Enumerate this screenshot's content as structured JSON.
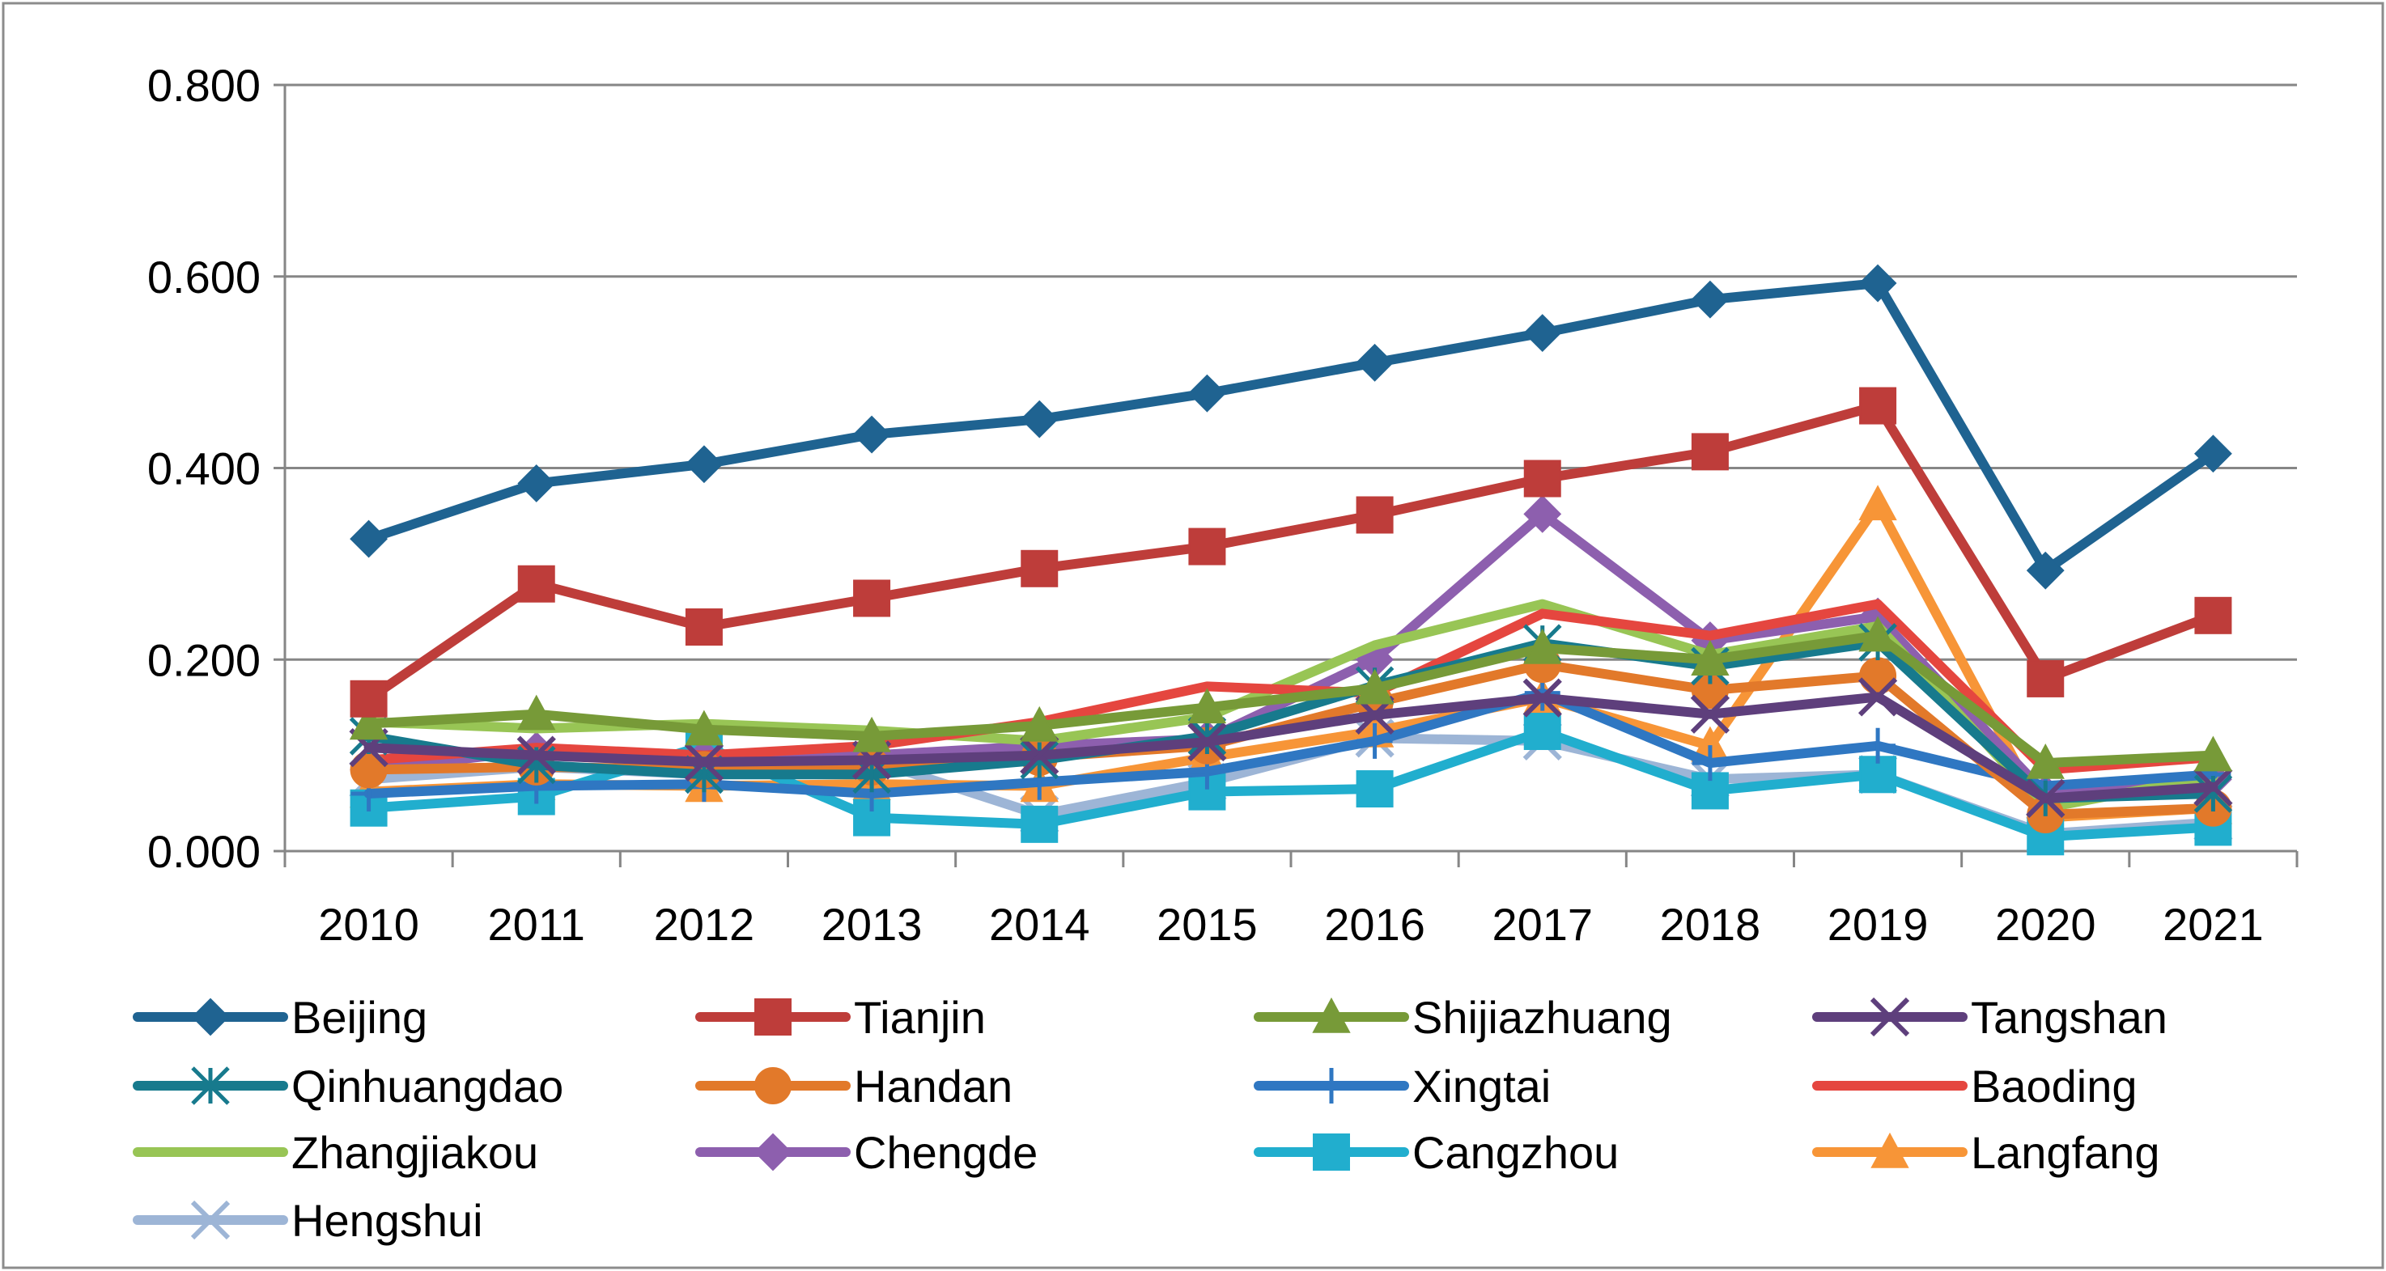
{
  "chart_data": {
    "type": "line",
    "title": "",
    "xlabel": "",
    "ylabel": "",
    "categories": [
      "2010",
      "2011",
      "2012",
      "2013",
      "2014",
      "2015",
      "2016",
      "2017",
      "2018",
      "2019",
      "2020",
      "2021"
    ],
    "ylim": [
      0,
      0.8
    ],
    "yticks": [
      0,
      0.2,
      0.4,
      0.6,
      0.8
    ],
    "ytick_labels": [
      "0.000",
      "0.200",
      "0.400",
      "0.600",
      "0.800"
    ],
    "grid": "horizontal",
    "legend_position": "bottom",
    "series": [
      {
        "name": "Beijing",
        "marker": "diamond",
        "color": "#1F6391",
        "values": [
          0.326,
          0.384,
          0.404,
          0.435,
          0.451,
          0.478,
          0.51,
          0.541,
          0.576,
          0.593,
          0.293,
          0.415
        ]
      },
      {
        "name": "Tianjin",
        "marker": "square",
        "color": "#BE3D3A",
        "values": [
          0.159,
          0.279,
          0.234,
          0.264,
          0.295,
          0.318,
          0.351,
          0.389,
          0.417,
          0.465,
          0.18,
          0.246
        ]
      },
      {
        "name": "Shijiazhuang",
        "marker": "triangle",
        "color": "#779A38",
        "values": [
          0.133,
          0.143,
          0.127,
          0.12,
          0.131,
          0.15,
          0.17,
          0.212,
          0.2,
          0.225,
          0.092,
          0.1
        ]
      },
      {
        "name": "Tangshan",
        "marker": "x",
        "color": "#5E3F7C",
        "values": [
          0.108,
          0.1,
          0.093,
          0.095,
          0.1,
          0.114,
          0.142,
          0.16,
          0.143,
          0.161,
          0.055,
          0.067
        ]
      },
      {
        "name": "Qinhuangdao",
        "marker": "asterisk",
        "color": "#177A8D",
        "values": [
          0.12,
          0.09,
          0.08,
          0.08,
          0.095,
          0.12,
          0.173,
          0.217,
          0.193,
          0.218,
          0.055,
          0.06
        ]
      },
      {
        "name": "Handan",
        "marker": "circle",
        "color": "#E2792A",
        "values": [
          0.085,
          0.088,
          0.085,
          0.088,
          0.098,
          0.11,
          0.155,
          0.195,
          0.168,
          0.183,
          0.038,
          0.045
        ]
      },
      {
        "name": "Xingtai",
        "marker": "plus",
        "color": "#2F77C2",
        "values": [
          0.06,
          0.068,
          0.07,
          0.06,
          0.072,
          0.083,
          0.115,
          0.165,
          0.092,
          0.11,
          0.068,
          0.08
        ]
      },
      {
        "name": "Baoding",
        "marker": "none",
        "color": "#E5463F",
        "values": [
          0.095,
          0.108,
          0.1,
          0.11,
          0.135,
          0.172,
          0.165,
          0.248,
          0.225,
          0.258,
          0.085,
          0.098
        ]
      },
      {
        "name": "Zhangjiakou",
        "marker": "none",
        "color": "#98C555",
        "values": [
          0.135,
          0.128,
          0.133,
          0.126,
          0.115,
          0.14,
          0.215,
          0.258,
          0.205,
          0.235,
          0.045,
          0.078
        ]
      },
      {
        "name": "Chengde",
        "marker": "diamond",
        "color": "#8D5FAE",
        "values": [
          0.085,
          0.105,
          0.098,
          0.1,
          0.11,
          0.117,
          0.2,
          0.352,
          0.22,
          0.245,
          0.06,
          0.075
        ]
      },
      {
        "name": "Cangzhou",
        "marker": "square",
        "color": "#21AECE",
        "values": [
          0.045,
          0.057,
          0.11,
          0.035,
          0.028,
          0.062,
          0.065,
          0.125,
          0.063,
          0.08,
          0.015,
          0.025
        ]
      },
      {
        "name": "Langfang",
        "marker": "triangle",
        "color": "#F79537",
        "values": [
          0.062,
          0.07,
          0.068,
          0.07,
          0.068,
          0.098,
          0.125,
          0.16,
          0.11,
          0.362,
          0.035,
          0.045
        ]
      },
      {
        "name": "Hengshui",
        "marker": "x",
        "color": "#9DB5D6",
        "values": [
          0.075,
          0.088,
          0.08,
          0.095,
          0.038,
          0.072,
          0.118,
          0.115,
          0.075,
          0.08,
          0.018,
          0.03
        ]
      }
    ]
  }
}
